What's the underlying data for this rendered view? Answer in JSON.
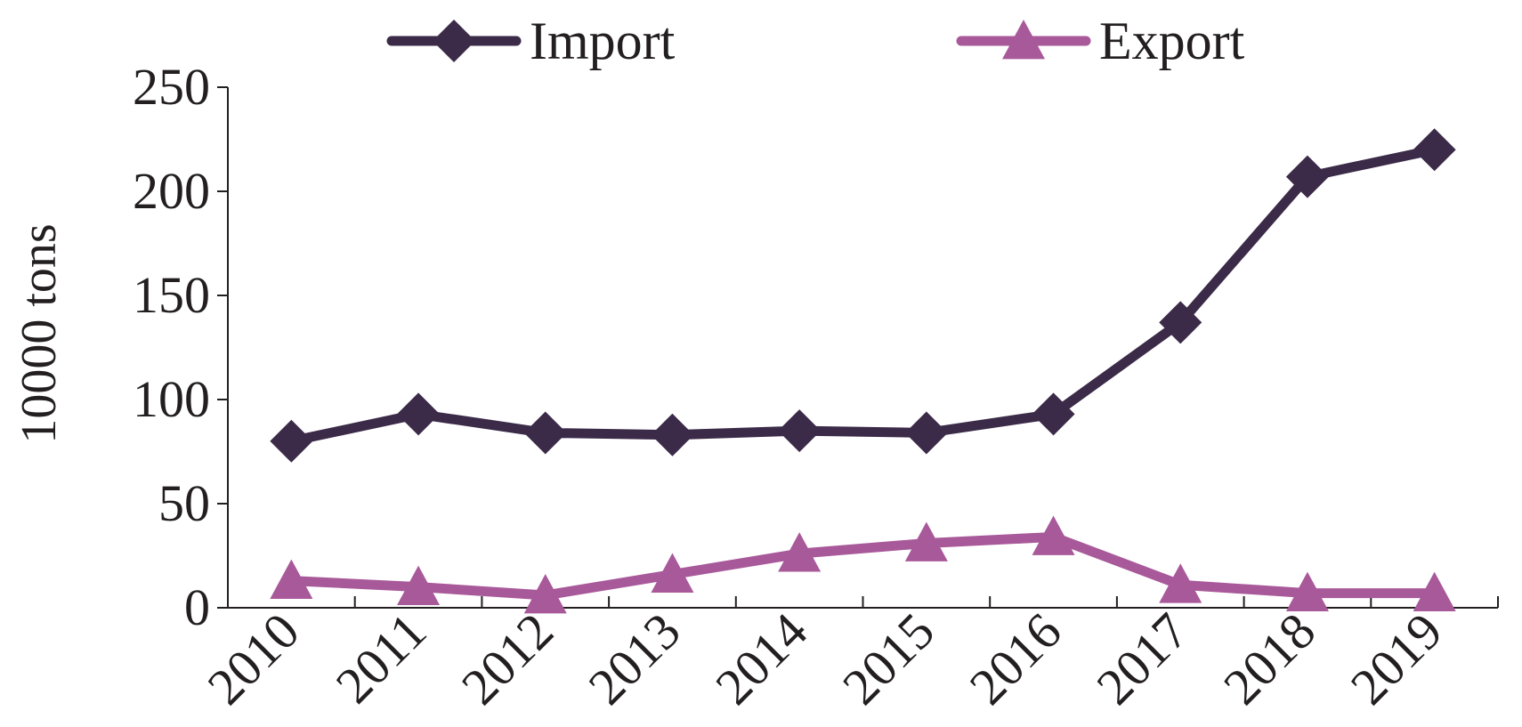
{
  "chart_data": {
    "type": "line",
    "categories": [
      "2010",
      "2011",
      "2012",
      "2013",
      "2014",
      "2015",
      "2016",
      "2017",
      "2018",
      "2019"
    ],
    "series": [
      {
        "name": "Import",
        "values": [
          80,
          93,
          84,
          83,
          85,
          84,
          93,
          137,
          207,
          220
        ],
        "color": "#3b2a48",
        "marker": "diamond"
      },
      {
        "name": "Export",
        "values": [
          13,
          10,
          6,
          16,
          26,
          31,
          34,
          11,
          7,
          7
        ],
        "color": "#a8599a",
        "marker": "triangle"
      }
    ],
    "ylabel": "10000 tons",
    "xlabel": "",
    "ylim": [
      0,
      250
    ],
    "yticks": [
      0,
      50,
      100,
      150,
      200,
      250
    ],
    "grid": false,
    "legend": "top"
  }
}
